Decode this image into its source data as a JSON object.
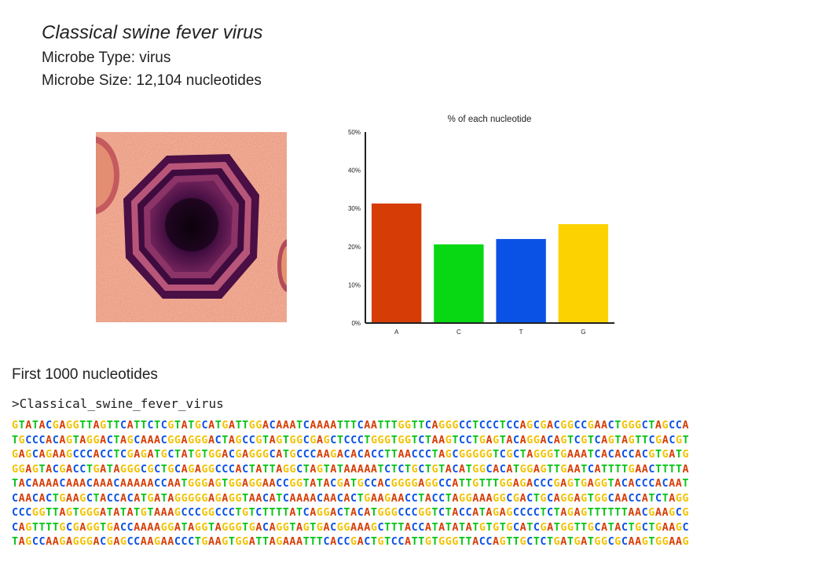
{
  "header": {
    "title": "Classical swine fever virus",
    "type_line": "Microbe Type: virus",
    "size_line": "Microbe Size: 12,104 nucleotides"
  },
  "micrograph": {
    "icon": "virus-micrograph"
  },
  "chart_data": {
    "type": "bar",
    "title": "% of each nucleotide",
    "categories": [
      "A",
      "C",
      "T",
      "G"
    ],
    "values": [
      31.3,
      20.6,
      22.0,
      25.9
    ],
    "colors": [
      "#d63d06",
      "#07d813",
      "#0a52e5",
      "#fcd200"
    ],
    "ylim": [
      0,
      50
    ],
    "yticks": [
      "0%",
      "10%",
      "20%",
      "30%",
      "40%",
      "50%"
    ],
    "xlabel": "",
    "ylabel": "",
    "grid": false
  },
  "sequence": {
    "heading": "First 1000 nucleotides",
    "fasta_header": ">Classical_swine_fever_virus",
    "colors": {
      "A": "#d63d06",
      "C": "#0a52e5",
      "G": "#f2c200",
      "T": "#07c417"
    },
    "lines": [
      "GTATACGAGGTTAGTTCATTCTCGTATGCATGATTGGACAAATCAAAATTTCAATTTGGTTCAGGGCCTCCCTCCAGCGACGGCCGAACTGGGCTAGCCA",
      "TGCCCACAGTAGGACTAGCAAACGGAGGGACTAGCCGTAGTGGCGAGCTCCCTGGGTGGTCTAAGTCCTGAGTACAGGACAGTCGTCAGTAGTTCGACGT",
      "GAGCAGAAGCCCACCTCGAGATGCTATGTGGACGAGGGCATGCCCAAGACACACCTTAACCCTAGCGGGGGTCGCTAGGGTGAAATCACACCACGTGATG",
      "GGAGTACGACCTGATAGGGCGCTGCAGAGGCCCACTATTAGGCTAGTATAAAAATCTCTGCTGTACATGGCACATGGAGTTGAATCATTTTGAACTTTTA",
      "TACAAAACAAACAAACAAAAACCAATGGGAGTGGAGGAACCGGTATACGATGCCACGGGGAGGCCATTGTTTGGAGACCCGAGTGAGGTACACCCACAAT",
      "CAACACTGAAGCTACCACATGATAGGGGGAGAGGTAACATCAAAACAACACTGAAGAACCTACCTAGGAAAGGCGACTGCAGGAGTGGCAACCATCTAGG",
      "CCCGGTTAGTGGGATATATGTAAAGCCCGGCCCTGTCTTTTATCAGGACTACATGGGCCCGGTCTACCATAGAGCCCCTCTAGAGTTTTTTAACGAAGCG",
      "CAGTTTTGCGAGGTGACCAAAAGGATAGGTAGGGTGACAGGTAGTGACGGAAAGCTTTACCATATATATGTGTGCATCGATGGTTGCATACTGCTGAAGC",
      "TAGCCAAGAGGGACGAGCCAAGAACCCTGAAGTGGATTAGAAATTTCACCGACTGTCCATTGTGGGTTACCAGTTGCTCTGATGATGGCGCAAGTGGAAG"
    ]
  }
}
